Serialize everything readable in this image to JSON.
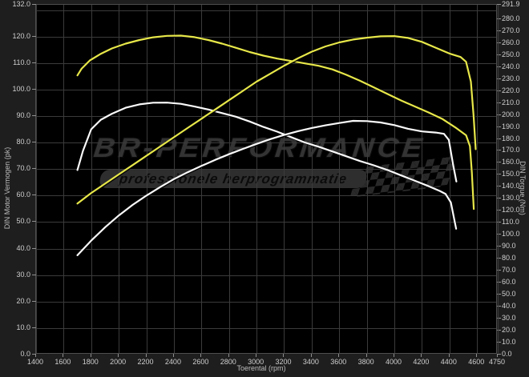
{
  "watermark": {
    "title": "BR-PERFORMANCE",
    "subtitle": "professionele herprogrammatie"
  },
  "chart_data": {
    "type": "line",
    "xlabel": "Toerental (rpm)",
    "ylabel_left": "DIN Motor Vermogen (pk)",
    "ylabel_right": "DIN Torque (Nm)",
    "x_range": [
      1400,
      4750
    ],
    "y_left_range": [
      0,
      132
    ],
    "y_right_range": [
      0,
      291.9
    ],
    "x_ticks": [
      1400,
      1600,
      1800,
      2000,
      2200,
      2400,
      2600,
      2800,
      3000,
      3200,
      3400,
      3600,
      3800,
      4000,
      4200,
      4400,
      4600,
      4750
    ],
    "y_left_ticks": [
      132,
      120,
      110,
      100,
      90,
      80,
      70,
      60,
      50,
      40,
      30,
      20,
      10,
      0
    ],
    "y_left_gridlines": [
      10,
      20,
      30,
      40,
      50,
      60,
      70,
      80,
      90,
      100,
      110,
      120,
      130
    ],
    "y_right_ticks": [
      291.9,
      280,
      270,
      260,
      250,
      240,
      230,
      220,
      210,
      200,
      190,
      180,
      170,
      160,
      150,
      140,
      130,
      120,
      110,
      100,
      90,
      80,
      70,
      60,
      50,
      40,
      30,
      20,
      10,
      0
    ],
    "grid": "major",
    "legend": "none",
    "background": "#000000",
    "series": [
      {
        "name": "stock-torque",
        "axis": "right",
        "unit": "Nm",
        "color": "#fafafa",
        "points": [
          [
            1700,
            154
          ],
          [
            1740,
            170
          ],
          [
            1800,
            188
          ],
          [
            1870,
            196
          ],
          [
            1950,
            201
          ],
          [
            2050,
            206
          ],
          [
            2150,
            208.8
          ],
          [
            2250,
            210.2
          ],
          [
            2350,
            210.3
          ],
          [
            2450,
            209.3
          ],
          [
            2550,
            207
          ],
          [
            2650,
            204.5
          ],
          [
            2750,
            201.5
          ],
          [
            2850,
            198.5
          ],
          [
            2950,
            194.5
          ],
          [
            3050,
            190
          ],
          [
            3150,
            186
          ],
          [
            3250,
            181.5
          ],
          [
            3350,
            177
          ],
          [
            3450,
            173.5
          ],
          [
            3550,
            169.5
          ],
          [
            3650,
            165.5
          ],
          [
            3750,
            161.5
          ],
          [
            3850,
            158
          ],
          [
            3950,
            154
          ],
          [
            4050,
            149.5
          ],
          [
            4150,
            145
          ],
          [
            4250,
            140.5
          ],
          [
            4330,
            136.5
          ],
          [
            4372,
            134
          ],
          [
            4410,
            127
          ],
          [
            4448,
            105
          ]
        ]
      },
      {
        "name": "stock-power",
        "axis": "left",
        "unit": "pk",
        "color": "#fafafa",
        "points": [
          [
            1700,
            37.5
          ],
          [
            1800,
            43
          ],
          [
            1900,
            48
          ],
          [
            2000,
            52.5
          ],
          [
            2100,
            56.5
          ],
          [
            2200,
            60
          ],
          [
            2300,
            63.2
          ],
          [
            2400,
            66.2
          ],
          [
            2500,
            68.8
          ],
          [
            2600,
            71.2
          ],
          [
            2700,
            73.5
          ],
          [
            2800,
            75.6
          ],
          [
            2900,
            77.6
          ],
          [
            3000,
            79.5
          ],
          [
            3100,
            81.3
          ],
          [
            3200,
            82.9
          ],
          [
            3300,
            84.3
          ],
          [
            3400,
            85.5
          ],
          [
            3500,
            86.5
          ],
          [
            3600,
            87.4
          ],
          [
            3700,
            88.2
          ],
          [
            3800,
            88.1
          ],
          [
            3900,
            87.6
          ],
          [
            4000,
            86.6
          ],
          [
            4100,
            85.2
          ],
          [
            4200,
            84.2
          ],
          [
            4300,
            83.8
          ],
          [
            4360,
            83.3
          ],
          [
            4395,
            81
          ],
          [
            4425,
            72
          ],
          [
            4450,
            65.3
          ]
        ]
      },
      {
        "name": "tuned-torque",
        "axis": "right",
        "unit": "Nm",
        "color": "#e7e74a",
        "points": [
          [
            1700,
            233
          ],
          [
            1730,
            238.5
          ],
          [
            1790,
            245.5
          ],
          [
            1870,
            251
          ],
          [
            1950,
            255.5
          ],
          [
            2050,
            259.5
          ],
          [
            2150,
            262.5
          ],
          [
            2250,
            264.8
          ],
          [
            2350,
            266
          ],
          [
            2450,
            266.2
          ],
          [
            2550,
            264.9
          ],
          [
            2650,
            262.5
          ],
          [
            2750,
            259.5
          ],
          [
            2850,
            256
          ],
          [
            2950,
            252.5
          ],
          [
            3050,
            249.5
          ],
          [
            3150,
            247
          ],
          [
            3250,
            245
          ],
          [
            3350,
            243
          ],
          [
            3450,
            241
          ],
          [
            3550,
            238
          ],
          [
            3650,
            233.5
          ],
          [
            3750,
            228.5
          ],
          [
            3850,
            223
          ],
          [
            3950,
            217.5
          ],
          [
            4050,
            212
          ],
          [
            4150,
            207
          ],
          [
            4250,
            202
          ],
          [
            4350,
            196.5
          ],
          [
            4450,
            189
          ],
          [
            4520,
            183
          ],
          [
            4548,
            174
          ],
          [
            4562,
            152
          ],
          [
            4576,
            121.5
          ]
        ]
      },
      {
        "name": "tuned-power",
        "axis": "left",
        "unit": "pk",
        "color": "#e7e74a",
        "points": [
          [
            1700,
            57
          ],
          [
            1800,
            61
          ],
          [
            1900,
            64.5
          ],
          [
            2000,
            68
          ],
          [
            2100,
            71.5
          ],
          [
            2200,
            75
          ],
          [
            2300,
            78.5
          ],
          [
            2400,
            82
          ],
          [
            2500,
            85.5
          ],
          [
            2600,
            89
          ],
          [
            2700,
            92.5
          ],
          [
            2800,
            96
          ],
          [
            2900,
            99.5
          ],
          [
            3000,
            103
          ],
          [
            3100,
            106
          ],
          [
            3200,
            109
          ],
          [
            3300,
            111.8
          ],
          [
            3400,
            114.3
          ],
          [
            3500,
            116.3
          ],
          [
            3600,
            117.8
          ],
          [
            3700,
            118.9
          ],
          [
            3800,
            119.6
          ],
          [
            3900,
            120.1
          ],
          [
            4000,
            120.2
          ],
          [
            4100,
            119.5
          ],
          [
            4200,
            118
          ],
          [
            4300,
            115.8
          ],
          [
            4400,
            113.6
          ],
          [
            4480,
            112.3
          ],
          [
            4520,
            110.5
          ],
          [
            4555,
            103
          ],
          [
            4575,
            90
          ],
          [
            4590,
            77.5
          ]
        ]
      }
    ]
  }
}
